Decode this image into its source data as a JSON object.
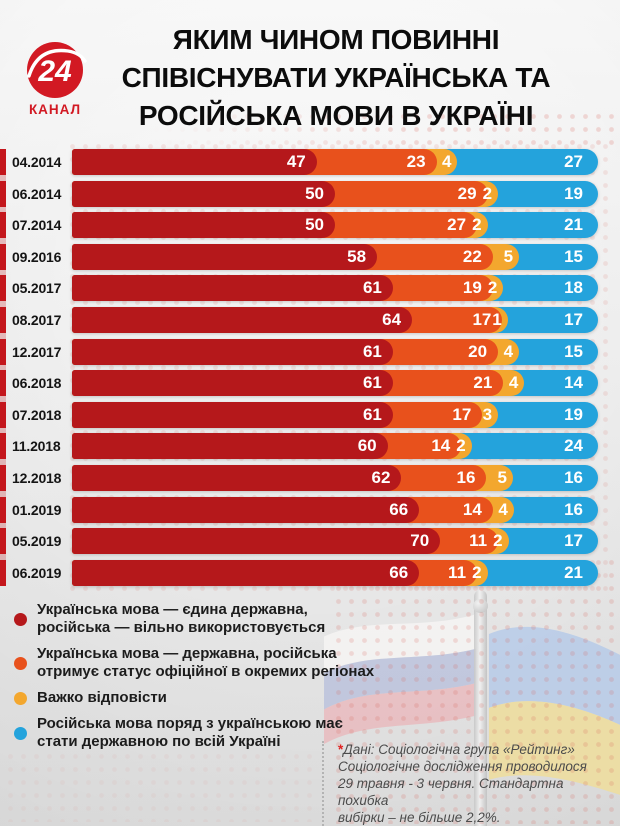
{
  "logo": {
    "number": "24",
    "channel": "КАНАЛ",
    "color": "#d21923"
  },
  "title": {
    "lines": [
      "ЯКИМ ЧИНОМ ПОВИННІ",
      "СПІВІСНУВАТИ УКРАЇНСЬКА ТА",
      "РОСІЙСЬКА МОВИ В УКРАЇНІ"
    ]
  },
  "chart_data": {
    "type": "bar",
    "orientation": "horizontal",
    "stacked": true,
    "value_unit": "%",
    "xlim": [
      0,
      100
    ],
    "categories": [
      "04.2014",
      "06.2014",
      "07.2014",
      "09.2016",
      "05.2017",
      "08.2017",
      "12.2017",
      "06.2018",
      "07.2018",
      "11.2018",
      "12.2018",
      "01.2019",
      "05.2019",
      "06.2019"
    ],
    "series": [
      {
        "name": "Українська мова — єдина державна, російська — вільно використовується",
        "color": "#b5181b",
        "values": [
          47,
          50,
          50,
          58,
          61,
          64,
          61,
          61,
          61,
          60,
          62,
          66,
          70,
          66
        ]
      },
      {
        "name": "Українська мова — державна, російська отримує статус офіційної в окремих регіонах",
        "color": "#e8511c",
        "values": [
          23,
          29,
          27,
          22,
          19,
          17,
          20,
          21,
          17,
          14,
          16,
          14,
          11,
          11
        ]
      },
      {
        "name": "Важко відповісти",
        "color": "#f3a72e",
        "values": [
          4,
          2,
          2,
          5,
          2,
          1,
          4,
          4,
          3,
          2,
          5,
          4,
          2,
          2
        ]
      },
      {
        "name": "Російська мова поряд з українською має стати державною по всій Україні",
        "color": "#24a3dc",
        "values": [
          27,
          19,
          21,
          15,
          18,
          17,
          15,
          14,
          19,
          24,
          16,
          16,
          17,
          21
        ]
      }
    ],
    "edge_stripe_color": "#c4161d",
    "legend_position": "bottom-left"
  },
  "legend": {
    "items": [
      {
        "label": "Українська мова — єдина державна,\nросійська — вільно використовується",
        "color": "#b5181b"
      },
      {
        "label": "Українська мова — державна, російська\nотримує статус офіційної в окремих регіонах",
        "color": "#e8511c"
      },
      {
        "label": "Важко відповісти",
        "color": "#f3a72e"
      },
      {
        "label": "Російська мова поряд з українською має\nстати державною по всій Україні",
        "color": "#24a3dc"
      }
    ]
  },
  "footnote": {
    "asterisk": "*",
    "text": "Дані:  Соціологічна група «Рейтинг»\nСоціологічне дослідження проводилося\n29 травня - 3 червня. Стандартна похибка\nвибірки – не більше 2,2%."
  }
}
